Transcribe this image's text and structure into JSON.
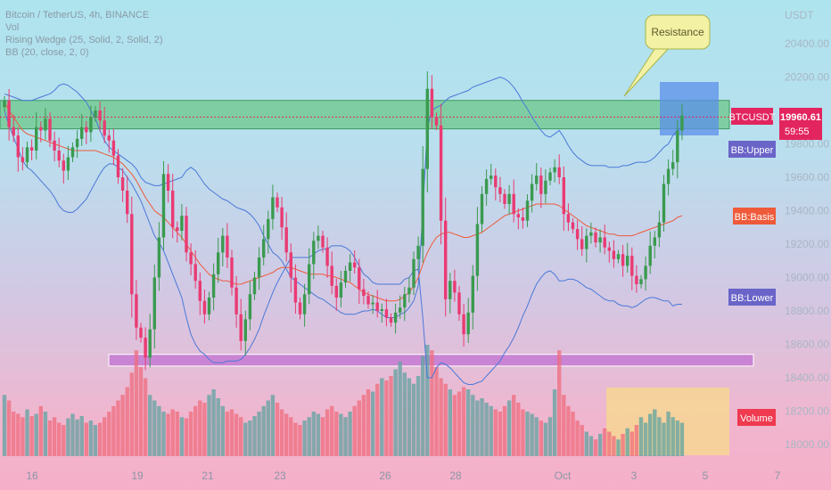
{
  "legend": {
    "symbol": "Bitcoin / TetherUS, 4h, BINANCE",
    "volume": "Vol",
    "wedge": "Rising Wedge (25, Solid, 2, Solid, 2)",
    "bb": "BB (20, close, 2, 0)"
  },
  "axis": {
    "unit": "USDT",
    "price_ticks": [
      "20400.00",
      "20200.00",
      "19800.00",
      "19600.00",
      "19400.00",
      "19200.00",
      "19000.00",
      "18800.00",
      "18600.00",
      "18400.00",
      "18200.00",
      "18000.00"
    ],
    "date_ticks": [
      "16",
      "19",
      "21",
      "23",
      "26",
      "28",
      "Oct",
      "3",
      "5",
      "7"
    ]
  },
  "labels": {
    "resistance": "Resistance",
    "ticker": "BTCUSDT",
    "price": "19960.61",
    "countdown": "59:55",
    "bb_upper": "BB:Upper",
    "bb_basis": "BB:Basis",
    "bb_lower": "BB:Lower",
    "volume": "Volume"
  },
  "colors": {
    "up": "#3a9a4f",
    "down": "#ea3a72",
    "bb_band": "#4a78d8",
    "bb_basis": "#ef5a3a",
    "resistance_zone": "#6cc88a",
    "support_zone": "#c57ad2",
    "price_label": "#e2255f",
    "target_box": "#5b8fea",
    "volume_box": "#f7d890"
  },
  "chart_data": {
    "type": "candlestick",
    "interval": "4h",
    "exchange": "BINANCE",
    "symbol": "BTCUSDT",
    "y_unit": "USDT",
    "ylim": [
      17900,
      20600
    ],
    "last_price": 19960.61,
    "resistance_zone": [
      19890,
      20060
    ],
    "support_zone": [
      18470,
      18540
    ],
    "closes": [
      20060,
      19900,
      19850,
      19720,
      19690,
      19780,
      19760,
      19900,
      19880,
      19950,
      19820,
      19760,
      19700,
      19640,
      19720,
      19780,
      19830,
      19900,
      19870,
      19960,
      20000,
      19940,
      19850,
      19820,
      19730,
      19600,
      19520,
      19380,
      18900,
      18700,
      18640,
      18520,
      18690,
      19000,
      19240,
      19620,
      19520,
      19300,
      19280,
      19370,
      19150,
      19080,
      18980,
      18860,
      18780,
      18880,
      19020,
      19150,
      19250,
      19120,
      18940,
      18780,
      18620,
      18750,
      18900,
      19000,
      19120,
      19230,
      19350,
      19480,
      19420,
      19300,
      19150,
      19000,
      18850,
      18780,
      18900,
      19080,
      19220,
      19250,
      19180,
      19070,
      18950,
      18880,
      18970,
      19040,
      19090,
      19060,
      18930,
      18890,
      18840,
      18850,
      18800,
      18810,
      18760,
      18730,
      18790,
      18820,
      18900,
      18940,
      19110,
      19190,
      19650,
      20130,
      19960,
      19910,
      19340,
      18870,
      18980,
      18910,
      18780,
      18660,
      18790,
      19010,
      19320,
      19500,
      19590,
      19610,
      19540,
      19500,
      19440,
      19500,
      19380,
      19360,
      19340,
      19460,
      19560,
      19610,
      19500,
      19580,
      19630,
      19660,
      19600,
      19380,
      19330,
      19290,
      19230,
      19170,
      19250,
      19270,
      19210,
      19240,
      19180,
      19160,
      19110,
      19140,
      19070,
      19130,
      19010,
      18960,
      18990,
      19070,
      19190,
      19240,
      19330,
      19560,
      19650,
      19690,
      19880,
      19970
    ],
    "bb_upper": [
      20100,
      20090,
      20080,
      20070,
      20060,
      20060,
      20060,
      20070,
      20080,
      20090,
      20100,
      20120,
      20150,
      20160,
      20150,
      20130,
      20110,
      20080,
      20050,
      20000,
      19950,
      19880,
      19820,
      19780,
      19760,
      19740,
      19720,
      19700,
      19680,
      19650,
      19600,
      19570,
      19560,
      19550,
      19550,
      19560,
      19570,
      19580,
      19590,
      19600,
      19640,
      19660,
      19640,
      19600,
      19560,
      19530,
      19510,
      19490,
      19470,
      19460,
      19440,
      19420,
      19410,
      19400,
      19380,
      19350,
      19310,
      19250,
      19200,
      19150,
      19130,
      19100,
      19050,
      19000,
      18980,
      18960,
      18940,
      18920,
      18900,
      18880,
      18870,
      18850,
      18830,
      18810,
      18790,
      18780,
      18780,
      18780,
      18790,
      18800,
      18800,
      18810,
      18800,
      18780,
      18760,
      18760,
      18760,
      18780,
      18790,
      18820,
      18860,
      18950,
      19400,
      19900,
      20000,
      20020,
      20030,
      20060,
      20080,
      20090,
      20100,
      20110,
      20120,
      20140,
      20150,
      20160,
      20170,
      20180,
      20190,
      20200,
      20190,
      20170,
      20140,
      20100,
      20050,
      20010,
      19960,
      19920,
      19880,
      19850,
      19840,
      19860,
      19880,
      19840,
      19790,
      19750,
      19720,
      19700,
      19680,
      19670,
      19670,
      19670,
      19670,
      19660,
      19660,
      19660,
      19670,
      19670,
      19680,
      19690,
      19690,
      19690,
      19700,
      19720,
      19750,
      19780,
      19800,
      19850,
      19880,
      19900
    ],
    "bb_basis": [
      20050,
      20000,
      19960,
      19920,
      19880,
      19860,
      19850,
      19840,
      19830,
      19820,
      19810,
      19800,
      19790,
      19780,
      19770,
      19760,
      19760,
      19760,
      19760,
      19760,
      19760,
      19750,
      19740,
      19730,
      19720,
      19700,
      19680,
      19650,
      19620,
      19580,
      19530,
      19480,
      19440,
      19400,
      19380,
      19360,
      19330,
      19300,
      19270,
      19240,
      19200,
      19160,
      19120,
      19080,
      19050,
      19020,
      19000,
      18990,
      18980,
      18980,
      18970,
      18960,
      18960,
      18970,
      18980,
      18990,
      19000,
      19010,
      19020,
      19030,
      19050,
      19060,
      19060,
      19060,
      19050,
      19040,
      19030,
      19020,
      19020,
      19020,
      19020,
      19010,
      19010,
      19000,
      18990,
      18980,
      18970,
      18950,
      18930,
      18910,
      18900,
      18890,
      18880,
      18870,
      18860,
      18860,
      18860,
      18870,
      18890,
      18910,
      18950,
      19000,
      19080,
      19150,
      19200,
      19240,
      19260,
      19270,
      19270,
      19260,
      19250,
      19240,
      19240,
      19250,
      19260,
      19270,
      19290,
      19310,
      19330,
      19350,
      19370,
      19380,
      19390,
      19400,
      19410,
      19420,
      19430,
      19440,
      19440,
      19440,
      19440,
      19440,
      19430,
      19410,
      19390,
      19370,
      19350,
      19330,
      19310,
      19300,
      19290,
      19280,
      19270,
      19260,
      19260,
      19250,
      19250,
      19250,
      19250,
      19260,
      19270,
      19280,
      19290,
      19300,
      19310,
      19320,
      19330,
      19340,
      19360,
      19370
    ],
    "bb_lower": [
      20000,
      19910,
      19840,
      19770,
      19700,
      19660,
      19640,
      19610,
      19580,
      19550,
      19520,
      19480,
      19430,
      19400,
      19390,
      19390,
      19410,
      19440,
      19470,
      19520,
      19570,
      19620,
      19660,
      19680,
      19680,
      19660,
      19640,
      19600,
      19560,
      19510,
      19460,
      19390,
      19320,
      19250,
      19210,
      19160,
      19090,
      19020,
      18950,
      18880,
      18760,
      18660,
      18600,
      18560,
      18540,
      18510,
      18490,
      18490,
      18490,
      18500,
      18500,
      18500,
      18510,
      18540,
      18580,
      18630,
      18690,
      18770,
      18840,
      18910,
      18970,
      19020,
      19070,
      19120,
      19120,
      19120,
      19120,
      19120,
      19140,
      19160,
      19170,
      19170,
      19190,
      19190,
      19190,
      19180,
      19160,
      19120,
      19070,
      19020,
      19000,
      18970,
      18960,
      18960,
      18960,
      18960,
      18960,
      18960,
      18990,
      19000,
      19040,
      19050,
      18760,
      18400,
      18400,
      18460,
      18490,
      18480,
      18460,
      18430,
      18400,
      18370,
      18360,
      18360,
      18370,
      18380,
      18410,
      18440,
      18470,
      18500,
      18550,
      18590,
      18640,
      18700,
      18770,
      18830,
      18900,
      18960,
      19000,
      19030,
      19040,
      19020,
      18980,
      18980,
      18990,
      18990,
      18980,
      18960,
      18940,
      18930,
      18910,
      18890,
      18870,
      18860,
      18860,
      18840,
      18830,
      18830,
      18820,
      18830,
      18850,
      18870,
      18880,
      18880,
      18870,
      18860,
      18860,
      18830,
      18840,
      18840
    ],
    "volume": [
      0.55,
      0.5,
      0.4,
      0.38,
      0.35,
      0.42,
      0.36,
      0.38,
      0.45,
      0.4,
      0.32,
      0.35,
      0.3,
      0.28,
      0.34,
      0.38,
      0.33,
      0.36,
      0.3,
      0.32,
      0.28,
      0.3,
      0.35,
      0.4,
      0.45,
      0.5,
      0.55,
      0.62,
      0.75,
      0.95,
      0.8,
      0.7,
      0.55,
      0.5,
      0.45,
      0.4,
      0.38,
      0.42,
      0.4,
      0.35,
      0.34,
      0.4,
      0.45,
      0.5,
      0.48,
      0.55,
      0.6,
      0.52,
      0.45,
      0.4,
      0.42,
      0.38,
      0.35,
      0.3,
      0.32,
      0.36,
      0.4,
      0.45,
      0.5,
      0.55,
      0.48,
      0.42,
      0.38,
      0.35,
      0.3,
      0.28,
      0.32,
      0.35,
      0.4,
      0.38,
      0.35,
      0.42,
      0.45,
      0.4,
      0.38,
      0.35,
      0.4,
      0.45,
      0.5,
      0.55,
      0.6,
      0.58,
      0.65,
      0.7,
      0.68,
      0.72,
      0.78,
      0.85,
      0.75,
      0.7,
      0.65,
      0.72,
      0.9,
      1.0,
      0.95,
      0.8,
      0.7,
      0.65,
      0.6,
      0.55,
      0.58,
      0.62,
      0.6,
      0.55,
      0.5,
      0.52,
      0.48,
      0.45,
      0.42,
      0.4,
      0.45,
      0.5,
      0.55,
      0.48,
      0.42,
      0.4,
      0.38,
      0.35,
      0.32,
      0.3,
      0.35,
      0.6,
      0.95,
      0.55,
      0.45,
      0.4,
      0.32,
      0.28,
      0.22,
      0.18,
      0.15,
      0.2,
      0.25,
      0.22,
      0.18,
      0.15,
      0.2,
      0.25,
      0.22,
      0.28,
      0.35,
      0.3,
      0.38,
      0.42,
      0.35,
      0.3,
      0.4,
      0.35,
      0.32,
      0.3
    ]
  }
}
